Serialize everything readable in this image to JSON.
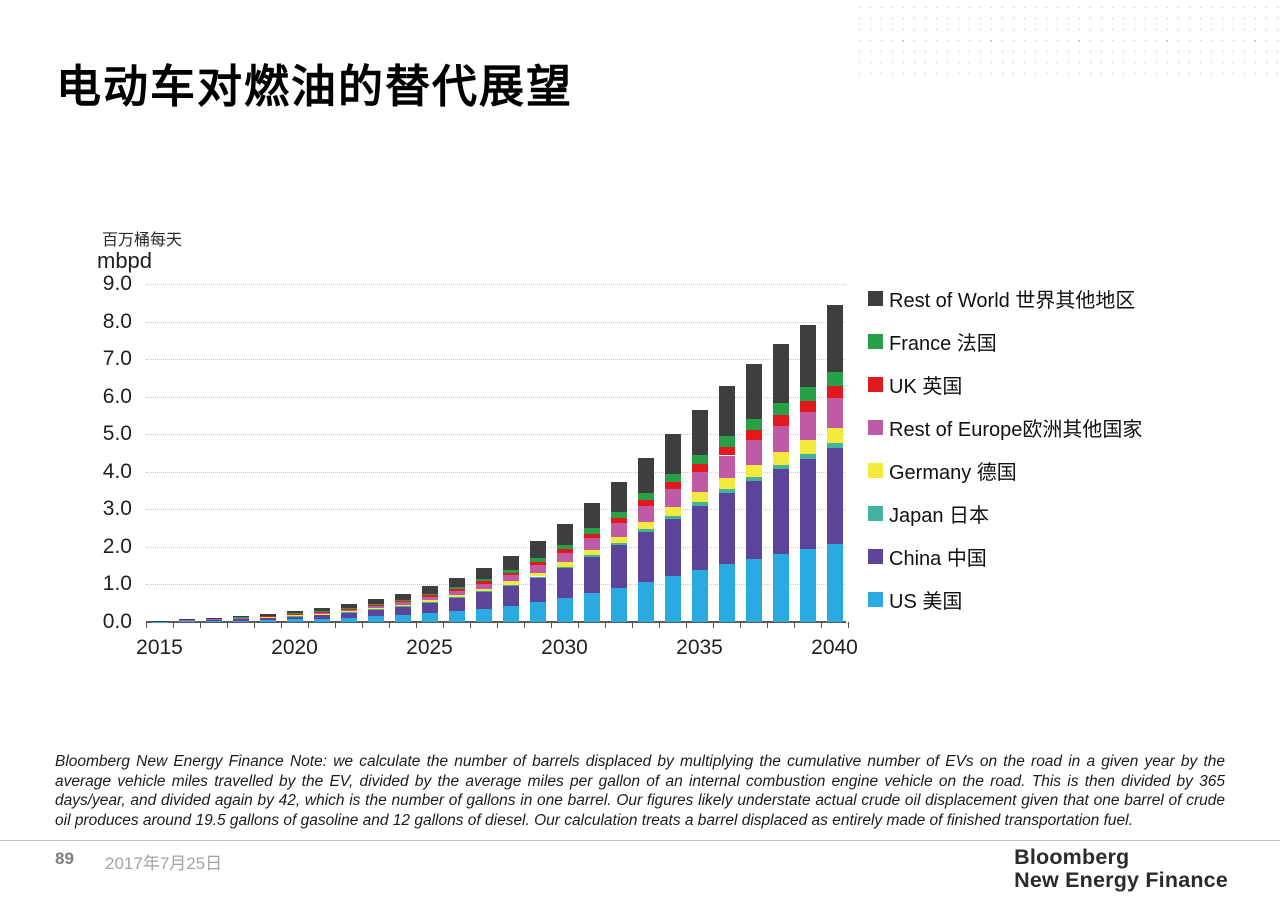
{
  "page": {
    "title": "电动车对燃油的替代展望",
    "note": "Bloomberg New Energy Finance Note: we calculate the number of barrels displaced by multiplying the cumulative number of EVs on the road in a given year by the average vehicle miles travelled by the EV, divided by the average miles per gallon of an internal combustion engine vehicle on the road. This is then divided by 365 days/year, and divided again by 42, which is the number of gallons in one barrel. Our figures likely understate actual crude oil displacement given that one barrel of crude oil produces around 19.5 gallons of gasoline and 12 gallons of diesel. Our calculation treats a barrel displaced as entirely made of finished transportation fuel.",
    "footer": {
      "page_number": "89",
      "date": "2017年7月25日",
      "logo_line1": "Bloomberg",
      "logo_line2": "New Energy Finance"
    }
  },
  "chart_data": {
    "type": "bar",
    "stacked": true,
    "unit_label_cn": "百万桶每天",
    "unit_label_en": "mbpd",
    "ylim": [
      0,
      9
    ],
    "ytick_step": 1,
    "y_tick_labels": [
      "0.0",
      "1.0",
      "2.0",
      "3.0",
      "4.0",
      "5.0",
      "6.0",
      "7.0",
      "8.0",
      "9.0"
    ],
    "x": [
      2015,
      2016,
      2017,
      2018,
      2019,
      2020,
      2021,
      2022,
      2023,
      2024,
      2025,
      2026,
      2027,
      2028,
      2029,
      2030,
      2031,
      2032,
      2033,
      2034,
      2035,
      2036,
      2037,
      2038,
      2039,
      2040
    ],
    "x_axis_labels": [
      "2015",
      "2020",
      "2025",
      "2030",
      "2035",
      "2040"
    ],
    "grid": "horizontal-dotted",
    "legend_position": "right",
    "legend_order": "top-is-last-series",
    "series": [
      {
        "name": "US",
        "label": "US 美国",
        "color": "#29ABE2",
        "values": [
          0.007,
          0.02,
          0.03,
          0.039,
          0.054,
          0.071,
          0.091,
          0.118,
          0.148,
          0.185,
          0.234,
          0.29,
          0.357,
          0.435,
          0.529,
          0.642,
          0.777,
          0.915,
          1.075,
          1.23,
          1.39,
          1.545,
          1.688,
          1.82,
          1.948,
          2.08
        ]
      },
      {
        "name": "China",
        "label": "China 中国",
        "color": "#5C4599",
        "values": [
          0.009,
          0.024,
          0.036,
          0.048,
          0.067,
          0.088,
          0.112,
          0.145,
          0.182,
          0.227,
          0.288,
          0.358,
          0.439,
          0.536,
          0.651,
          0.791,
          0.957,
          1.127,
          1.324,
          1.515,
          1.712,
          1.903,
          2.079,
          2.242,
          2.4,
          2.56
        ]
      },
      {
        "name": "Japan",
        "label": "Japan 日本",
        "color": "#45B2A0",
        "values": [
          0.001,
          0.001,
          0.002,
          0.002,
          0.003,
          0.004,
          0.006,
          0.007,
          0.009,
          0.011,
          0.014,
          0.018,
          0.022,
          0.027,
          0.032,
          0.039,
          0.047,
          0.056,
          0.066,
          0.075,
          0.085,
          0.094,
          0.103,
          0.111,
          0.119,
          0.13
        ]
      },
      {
        "name": "Germany",
        "label": "Germany 德国",
        "color": "#F3E93F",
        "values": [
          0.001,
          0.004,
          0.006,
          0.008,
          0.01,
          0.014,
          0.017,
          0.023,
          0.028,
          0.035,
          0.045,
          0.055,
          0.068,
          0.083,
          0.101,
          0.123,
          0.149,
          0.175,
          0.205,
          0.235,
          0.266,
          0.295,
          0.322,
          0.348,
          0.372,
          0.4
        ]
      },
      {
        "name": "Rest of Europe",
        "label": "Rest of Europe欧洲其他国家",
        "color": "#BF5BA4",
        "values": [
          0.003,
          0.008,
          0.011,
          0.015,
          0.021,
          0.028,
          0.035,
          0.046,
          0.057,
          0.071,
          0.09,
          0.112,
          0.138,
          0.168,
          0.204,
          0.248,
          0.3,
          0.353,
          0.415,
          0.475,
          0.537,
          0.597,
          0.652,
          0.703,
          0.752,
          0.8
        ]
      },
      {
        "name": "UK",
        "label": "UK 英国",
        "color": "#E2191C",
        "values": [
          0.001,
          0.003,
          0.005,
          0.006,
          0.008,
          0.011,
          0.014,
          0.018,
          0.023,
          0.029,
          0.036,
          0.045,
          0.055,
          0.067,
          0.082,
          0.099,
          0.12,
          0.141,
          0.166,
          0.19,
          0.215,
          0.239,
          0.261,
          0.281,
          0.301,
          0.32
        ]
      },
      {
        "name": "France",
        "label": "France 法国",
        "color": "#28A048",
        "values": [
          0.001,
          0.004,
          0.005,
          0.007,
          0.01,
          0.013,
          0.017,
          0.022,
          0.027,
          0.034,
          0.043,
          0.053,
          0.065,
          0.08,
          0.097,
          0.117,
          0.142,
          0.167,
          0.197,
          0.225,
          0.254,
          0.283,
          0.309,
          0.333,
          0.356,
          0.38
        ]
      },
      {
        "name": "Rest of World",
        "label": "Rest of World 世界其他地区",
        "color": "#3E3E3F",
        "values": [
          0.006,
          0.017,
          0.025,
          0.034,
          0.046,
          0.061,
          0.078,
          0.101,
          0.127,
          0.158,
          0.2,
          0.249,
          0.306,
          0.373,
          0.454,
          0.551,
          0.667,
          0.785,
          0.922,
          1.055,
          1.192,
          1.325,
          1.447,
          1.561,
          1.671,
          1.78
        ]
      }
    ]
  }
}
